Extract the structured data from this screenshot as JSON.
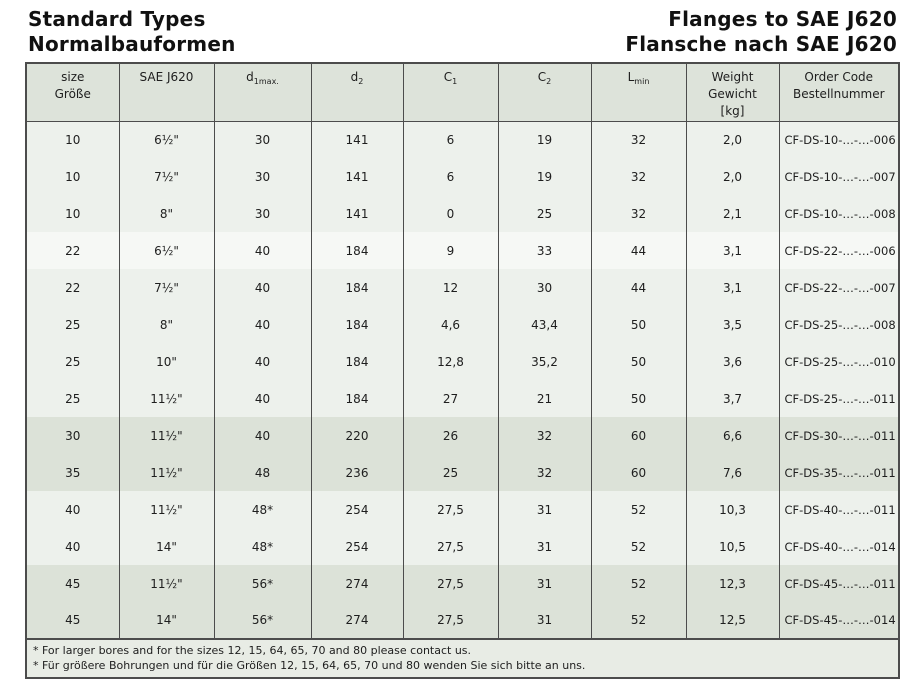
{
  "header": {
    "title_left": [
      "Standard Types",
      "Normalbauformen"
    ],
    "title_right": [
      "Flanges to SAE J620",
      "Flansche nach SAE J620"
    ]
  },
  "table": {
    "columns": [
      {
        "id": "size",
        "lines": [
          "size",
          "Größe"
        ]
      },
      {
        "id": "sae",
        "lines": [
          "SAE J620"
        ]
      },
      {
        "id": "d1max",
        "base": "d",
        "sub": "1max."
      },
      {
        "id": "d2",
        "base": "d",
        "sub": "2"
      },
      {
        "id": "c1",
        "base": "C",
        "sub": "1"
      },
      {
        "id": "c2",
        "base": "C",
        "sub": "2"
      },
      {
        "id": "lmin",
        "base": "L",
        "sub": "min"
      },
      {
        "id": "weight",
        "lines": [
          "Weight",
          "Gewicht",
          "[kg]"
        ]
      },
      {
        "id": "order",
        "lines": [
          "Order Code",
          "Bestellnummer"
        ]
      }
    ],
    "rows": [
      {
        "size": "10",
        "sae": "6½\"",
        "d1max": "30",
        "d2": "141",
        "c1": "6",
        "c2": "19",
        "lmin": "32",
        "weight": "2,0",
        "order": "CF-DS-10-…-…-006",
        "band": "light"
      },
      {
        "size": "10",
        "sae": "7½\"",
        "d1max": "30",
        "d2": "141",
        "c1": "6",
        "c2": "19",
        "lmin": "32",
        "weight": "2,0",
        "order": "CF-DS-10-…-…-007",
        "band": "light"
      },
      {
        "size": "10",
        "sae": "8\"",
        "d1max": "30",
        "d2": "141",
        "c1": "0",
        "c2": "25",
        "lmin": "32",
        "weight": "2,1",
        "order": "CF-DS-10-…-…-008",
        "band": "light"
      },
      {
        "size": "22",
        "sae": "6½\"",
        "d1max": "40",
        "d2": "184",
        "c1": "9",
        "c2": "33",
        "lmin": "44",
        "weight": "3,1",
        "order": "CF-DS-22-…-…-006",
        "band": "white"
      },
      {
        "size": "22",
        "sae": "7½\"",
        "d1max": "40",
        "d2": "184",
        "c1": "12",
        "c2": "30",
        "lmin": "44",
        "weight": "3,1",
        "order": "CF-DS-22-…-…-007",
        "band": "light"
      },
      {
        "size": "25",
        "sae": "8\"",
        "d1max": "40",
        "d2": "184",
        "c1": "4,6",
        "c2": "43,4",
        "lmin": "50",
        "weight": "3,5",
        "order": "CF-DS-25-…-…-008",
        "band": "light"
      },
      {
        "size": "25",
        "sae": "10\"",
        "d1max": "40",
        "d2": "184",
        "c1": "12,8",
        "c2": "35,2",
        "lmin": "50",
        "weight": "3,6",
        "order": "CF-DS-25-…-…-010",
        "band": "light"
      },
      {
        "size": "25",
        "sae": "11½\"",
        "d1max": "40",
        "d2": "184",
        "c1": "27",
        "c2": "21",
        "lmin": "50",
        "weight": "3,7",
        "order": "CF-DS-25-…-…-011",
        "band": "light"
      },
      {
        "size": "30",
        "sae": "11½\"",
        "d1max": "40",
        "d2": "220",
        "c1": "26",
        "c2": "32",
        "lmin": "60",
        "weight": "6,6",
        "order": "CF-DS-30-…-…-011",
        "band": "dark"
      },
      {
        "size": "35",
        "sae": "11½\"",
        "d1max": "48",
        "d2": "236",
        "c1": "25",
        "c2": "32",
        "lmin": "60",
        "weight": "7,6",
        "order": "CF-DS-35-…-…-011",
        "band": "dark"
      },
      {
        "size": "40",
        "sae": "11½\"",
        "d1max": "48*",
        "d2": "254",
        "c1": "27,5",
        "c2": "31",
        "lmin": "52",
        "weight": "10,3",
        "order": "CF-DS-40-…-…-011",
        "band": "light"
      },
      {
        "size": "40",
        "sae": "14\"",
        "d1max": "48*",
        "d2": "254",
        "c1": "27,5",
        "c2": "31",
        "lmin": "52",
        "weight": "10,5",
        "order": "CF-DS-40-…-…-014",
        "band": "light"
      },
      {
        "size": "45",
        "sae": "11½\"",
        "d1max": "56*",
        "d2": "274",
        "c1": "27,5",
        "c2": "31",
        "lmin": "52",
        "weight": "12,3",
        "order": "CF-DS-45-…-…-011",
        "band": "dark"
      },
      {
        "size": "45",
        "sae": "14\"",
        "d1max": "56*",
        "d2": "274",
        "c1": "27,5",
        "c2": "31",
        "lmin": "52",
        "weight": "12,5",
        "order": "CF-DS-45-…-…-014",
        "band": "dark"
      }
    ]
  },
  "footnotes": [
    {
      "marker": "*",
      "text": "For larger bores and for the sizes 12, 15, 64, 65, 70 and 80 please contact us."
    },
    {
      "marker": "*",
      "text": "Für größere Bohrungen und für die Größen 12, 15, 64, 65, 70 und 80 wenden Sie sich bitte an uns."
    }
  ],
  "colors": {
    "border": "#4c4c4c",
    "header_bg": "#dde3da",
    "row_light": "#edf1ec",
    "row_white": "#f6f8f5",
    "row_dark": "#dce2d8",
    "footnote_bg": "#e8ece5",
    "text": "#1e1e1e",
    "title": "#111111"
  }
}
